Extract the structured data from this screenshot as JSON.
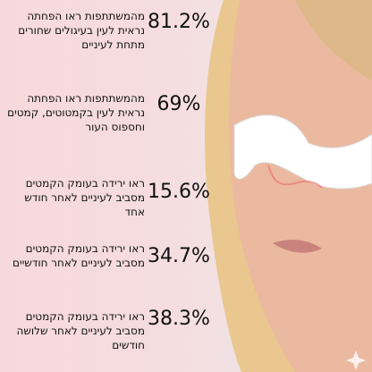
{
  "stats": [
    {
      "percent": "81.2%",
      "description": "מהמשתתפות ראו הפחתה נראית לעין בעיגולים שחורים מתחת לעיניים"
    },
    {
      "percent": "69%",
      "description": "מהמשתתפות ראו הפחתה נראית לעין בקמטוטים, קמטים וחספוס העור"
    },
    {
      "percent": "15.6%",
      "description": "ראו ירידה בעומק הקמטים מסביב לעיניים לאחר חודש אחד"
    },
    {
      "percent": "34.7%",
      "description": "ראו ירידה בעומק הקמטים מסביב לעיניים לאחר חודשיים"
    },
    {
      "percent": "38.3%",
      "description": "ראו ירידה בעומק הקמטים מסביב לעיניים לאחר שלושה חודשים"
    }
  ]
}
